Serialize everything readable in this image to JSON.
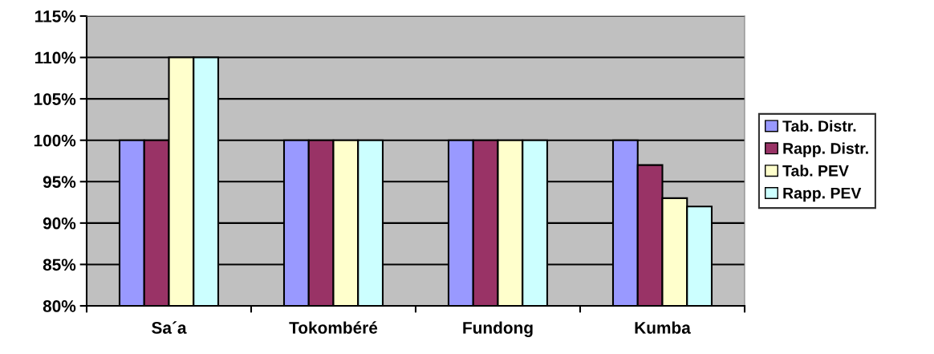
{
  "chart_data": {
    "type": "bar",
    "categories": [
      "Sa´a",
      "Tokombéré",
      "Fundong",
      "Kumba"
    ],
    "series": [
      {
        "name": "Tab. Distr.",
        "color": "#9999ff",
        "values": [
          100,
          100,
          100,
          100
        ]
      },
      {
        "name": "Rapp. Distr.",
        "color": "#993366",
        "values": [
          100,
          100,
          100,
          97
        ]
      },
      {
        "name": "Tab. PEV",
        "color": "#ffffcc",
        "values": [
          110,
          100,
          100,
          93
        ]
      },
      {
        "name": "Rapp. PEV",
        "color": "#ccffff",
        "values": [
          110,
          100,
          100,
          92
        ]
      }
    ],
    "ylim": [
      80,
      115
    ],
    "yticks": [
      {
        "value": 80,
        "label": "80%"
      },
      {
        "value": 85,
        "label": "85%"
      },
      {
        "value": 90,
        "label": "90%"
      },
      {
        "value": 95,
        "label": "95%"
      },
      {
        "value": 100,
        "label": "100%"
      },
      {
        "value": 105,
        "label": "105%"
      },
      {
        "value": 110,
        "label": "110%"
      },
      {
        "value": 115,
        "label": "115%"
      }
    ],
    "grid": "y",
    "legend": "right"
  }
}
